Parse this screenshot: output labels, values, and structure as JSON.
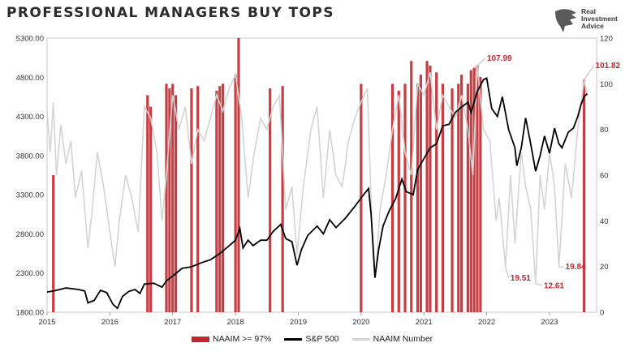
{
  "page": {
    "title": "PROFESSIONAL MANAGERS BUY TOPS"
  },
  "logo": {
    "line1": "Real",
    "line2": "Investment",
    "line3": "Advice",
    "icon": "eagle-head-icon"
  },
  "chart_data": {
    "type": "line",
    "title": "PROFESSIONAL MANAGERS BUY TOPS",
    "x_range": [
      2015.0,
      2023.75
    ],
    "x_ticks": [
      "2015",
      "2016",
      "2017",
      "2018",
      "2019",
      "2020",
      "2021",
      "2022",
      "2023"
    ],
    "left_axis": {
      "range": [
        1800,
        5300
      ],
      "ticks": [
        "5300.00",
        "4800.00",
        "4300.00",
        "3800.00",
        "3300.00",
        "2800.00",
        "2300.00",
        "1800.00"
      ]
    },
    "right_axis": {
      "range": [
        0,
        120
      ],
      "ticks": [
        "120",
        "100",
        "80",
        "60",
        "40",
        "20",
        "0"
      ]
    },
    "grid": false,
    "legend_position": "bottom",
    "colors": {
      "bars": "#c0282d",
      "spx": "#000000",
      "naaim": "#d4d4d4",
      "annotation": "#c0282d"
    },
    "series": [
      {
        "name": "S&P 500",
        "axis": "left",
        "points": [
          [
            2015.0,
            2058
          ],
          [
            2015.1,
            2070
          ],
          [
            2015.2,
            2090
          ],
          [
            2015.3,
            2110
          ],
          [
            2015.4,
            2100
          ],
          [
            2015.5,
            2090
          ],
          [
            2015.6,
            2070
          ],
          [
            2015.65,
            1920
          ],
          [
            2015.75,
            1950
          ],
          [
            2015.85,
            2080
          ],
          [
            2015.95,
            2050
          ],
          [
            2016.05,
            1900
          ],
          [
            2016.12,
            1850
          ],
          [
            2016.2,
            2000
          ],
          [
            2016.3,
            2065
          ],
          [
            2016.4,
            2090
          ],
          [
            2016.48,
            2040
          ],
          [
            2016.55,
            2160
          ],
          [
            2016.7,
            2170
          ],
          [
            2016.83,
            2120
          ],
          [
            2016.9,
            2200
          ],
          [
            2017.0,
            2260
          ],
          [
            2017.15,
            2360
          ],
          [
            2017.3,
            2380
          ],
          [
            2017.45,
            2430
          ],
          [
            2017.6,
            2470
          ],
          [
            2017.75,
            2550
          ],
          [
            2017.9,
            2650
          ],
          [
            2018.0,
            2720
          ],
          [
            2018.07,
            2870
          ],
          [
            2018.12,
            2620
          ],
          [
            2018.2,
            2720
          ],
          [
            2018.28,
            2650
          ],
          [
            2018.4,
            2720
          ],
          [
            2018.5,
            2720
          ],
          [
            2018.6,
            2830
          ],
          [
            2018.72,
            2920
          ],
          [
            2018.8,
            2740
          ],
          [
            2018.9,
            2700
          ],
          [
            2018.98,
            2400
          ],
          [
            2019.05,
            2600
          ],
          [
            2019.15,
            2780
          ],
          [
            2019.3,
            2900
          ],
          [
            2019.4,
            2800
          ],
          [
            2019.5,
            2980
          ],
          [
            2019.6,
            2880
          ],
          [
            2019.75,
            3000
          ],
          [
            2019.9,
            3150
          ],
          [
            2020.0,
            3260
          ],
          [
            2020.12,
            3380
          ],
          [
            2020.16,
            3050
          ],
          [
            2020.22,
            2240
          ],
          [
            2020.28,
            2600
          ],
          [
            2020.35,
            2900
          ],
          [
            2020.45,
            3100
          ],
          [
            2020.55,
            3250
          ],
          [
            2020.65,
            3500
          ],
          [
            2020.72,
            3340
          ],
          [
            2020.83,
            3300
          ],
          [
            2020.9,
            3620
          ],
          [
            2021.0,
            3760
          ],
          [
            2021.1,
            3900
          ],
          [
            2021.2,
            3950
          ],
          [
            2021.3,
            4180
          ],
          [
            2021.4,
            4200
          ],
          [
            2021.5,
            4350
          ],
          [
            2021.6,
            4420
          ],
          [
            2021.7,
            4480
          ],
          [
            2021.75,
            4350
          ],
          [
            2021.85,
            4620
          ],
          [
            2021.95,
            4770
          ],
          [
            2022.0,
            4790
          ],
          [
            2022.08,
            4400
          ],
          [
            2022.17,
            4300
          ],
          [
            2022.25,
            4550
          ],
          [
            2022.35,
            4130
          ],
          [
            2022.45,
            3900
          ],
          [
            2022.48,
            3670
          ],
          [
            2022.55,
            3900
          ],
          [
            2022.62,
            4280
          ],
          [
            2022.7,
            3950
          ],
          [
            2022.78,
            3600
          ],
          [
            2022.85,
            3800
          ],
          [
            2022.92,
            4050
          ],
          [
            2023.0,
            3830
          ],
          [
            2023.08,
            4150
          ],
          [
            2023.15,
            3950
          ],
          [
            2023.2,
            3900
          ],
          [
            2023.3,
            4100
          ],
          [
            2023.38,
            4150
          ],
          [
            2023.45,
            4300
          ],
          [
            2023.5,
            4450
          ],
          [
            2023.55,
            4550
          ],
          [
            2023.6,
            4590
          ]
        ]
      },
      {
        "name": "NAAIM Number",
        "axis": "right",
        "points": [
          [
            2015.0,
            88
          ],
          [
            2015.05,
            70
          ],
          [
            2015.1,
            92
          ],
          [
            2015.15,
            60
          ],
          [
            2015.22,
            82
          ],
          [
            2015.3,
            65
          ],
          [
            2015.38,
            75
          ],
          [
            2015.45,
            50
          ],
          [
            2015.55,
            62
          ],
          [
            2015.65,
            28
          ],
          [
            2015.72,
            45
          ],
          [
            2015.8,
            70
          ],
          [
            2015.9,
            55
          ],
          [
            2016.0,
            35
          ],
          [
            2016.08,
            20
          ],
          [
            2016.15,
            40
          ],
          [
            2016.25,
            60
          ],
          [
            2016.35,
            50
          ],
          [
            2016.45,
            35
          ],
          [
            2016.55,
            90
          ],
          [
            2016.65,
            85
          ],
          [
            2016.75,
            70
          ],
          [
            2016.83,
            40
          ],
          [
            2016.9,
            60
          ],
          [
            2017.0,
            95
          ],
          [
            2017.1,
            80
          ],
          [
            2017.2,
            90
          ],
          [
            2017.3,
            65
          ],
          [
            2017.4,
            80
          ],
          [
            2017.5,
            75
          ],
          [
            2017.6,
            85
          ],
          [
            2017.7,
            95
          ],
          [
            2017.8,
            88
          ],
          [
            2017.9,
            98
          ],
          [
            2018.0,
            104
          ],
          [
            2018.1,
            85
          ],
          [
            2018.2,
            50
          ],
          [
            2018.3,
            70
          ],
          [
            2018.4,
            85
          ],
          [
            2018.5,
            80
          ],
          [
            2018.6,
            90
          ],
          [
            2018.7,
            95
          ],
          [
            2018.8,
            45
          ],
          [
            2018.9,
            55
          ],
          [
            2018.98,
            25
          ],
          [
            2019.08,
            55
          ],
          [
            2019.2,
            80
          ],
          [
            2019.3,
            90
          ],
          [
            2019.4,
            50
          ],
          [
            2019.5,
            80
          ],
          [
            2019.6,
            60
          ],
          [
            2019.7,
            55
          ],
          [
            2019.8,
            75
          ],
          [
            2019.9,
            85
          ],
          [
            2020.0,
            92
          ],
          [
            2020.1,
            98
          ],
          [
            2020.17,
            40
          ],
          [
            2020.23,
            15
          ],
          [
            2020.3,
            45
          ],
          [
            2020.4,
            60
          ],
          [
            2020.5,
            80
          ],
          [
            2020.6,
            95
          ],
          [
            2020.7,
            70
          ],
          [
            2020.8,
            60
          ],
          [
            2020.9,
            100
          ],
          [
            2021.0,
            95
          ],
          [
            2021.1,
            105
          ],
          [
            2021.2,
            80
          ],
          [
            2021.3,
            95
          ],
          [
            2021.4,
            90
          ],
          [
            2021.5,
            85
          ],
          [
            2021.6,
            95
          ],
          [
            2021.7,
            80
          ],
          [
            2021.78,
            60
          ],
          [
            2021.85,
            107.99
          ],
          [
            2021.95,
            80
          ],
          [
            2022.05,
            75
          ],
          [
            2022.15,
            40
          ],
          [
            2022.2,
            50
          ],
          [
            2022.3,
            19.51
          ],
          [
            2022.38,
            60
          ],
          [
            2022.45,
            30
          ],
          [
            2022.55,
            70
          ],
          [
            2022.62,
            55
          ],
          [
            2022.7,
            45
          ],
          [
            2022.78,
            12.61
          ],
          [
            2022.85,
            60
          ],
          [
            2022.92,
            45
          ],
          [
            2023.0,
            70
          ],
          [
            2023.08,
            55
          ],
          [
            2023.15,
            19.84
          ],
          [
            2023.25,
            65
          ],
          [
            2023.35,
            50
          ],
          [
            2023.45,
            80
          ],
          [
            2023.55,
            101.82
          ],
          [
            2023.6,
            95
          ]
        ]
      },
      {
        "name": "NAAIM >= 97%",
        "axis": "right",
        "type": "bar",
        "bars": [
          [
            2015.1,
            60
          ],
          [
            2016.6,
            95
          ],
          [
            2016.65,
            90
          ],
          [
            2016.9,
            100
          ],
          [
            2016.95,
            98
          ],
          [
            2017.0,
            100
          ],
          [
            2017.05,
            95
          ],
          [
            2017.3,
            98
          ],
          [
            2017.4,
            99
          ],
          [
            2017.7,
            97
          ],
          [
            2017.75,
            99
          ],
          [
            2017.8,
            100
          ],
          [
            2018.0,
            104
          ],
          [
            2018.05,
            120
          ],
          [
            2018.55,
            98
          ],
          [
            2018.75,
            99
          ],
          [
            2020.0,
            100
          ],
          [
            2020.5,
            100
          ],
          [
            2020.6,
            97
          ],
          [
            2020.7,
            100
          ],
          [
            2020.8,
            110
          ],
          [
            2020.9,
            100
          ],
          [
            2020.95,
            104
          ],
          [
            2021.05,
            110
          ],
          [
            2021.1,
            108
          ],
          [
            2021.2,
            105
          ],
          [
            2021.3,
            100
          ],
          [
            2021.45,
            98
          ],
          [
            2021.55,
            100
          ],
          [
            2021.6,
            104
          ],
          [
            2021.7,
            100
          ],
          [
            2021.75,
            106
          ],
          [
            2021.8,
            107
          ],
          [
            2021.85,
            108
          ],
          [
            2021.9,
            103
          ],
          [
            2023.55,
            101.82
          ]
        ]
      }
    ],
    "annotations": [
      {
        "text": "107.99",
        "x": 2021.85,
        "y": 107.99
      },
      {
        "text": "101.82",
        "x": 2023.55,
        "y": 101.82
      },
      {
        "text": "19.51",
        "x": 2022.3,
        "y": 19.51
      },
      {
        "text": "12.61",
        "x": 2022.78,
        "y": 12.61
      },
      {
        "text": "19.84",
        "x": 2023.15,
        "y": 19.84
      }
    ]
  },
  "legend": {
    "bars": "NAAIM >= 97%",
    "spx": "S&P 500",
    "naaim": "NAAIM Number"
  }
}
